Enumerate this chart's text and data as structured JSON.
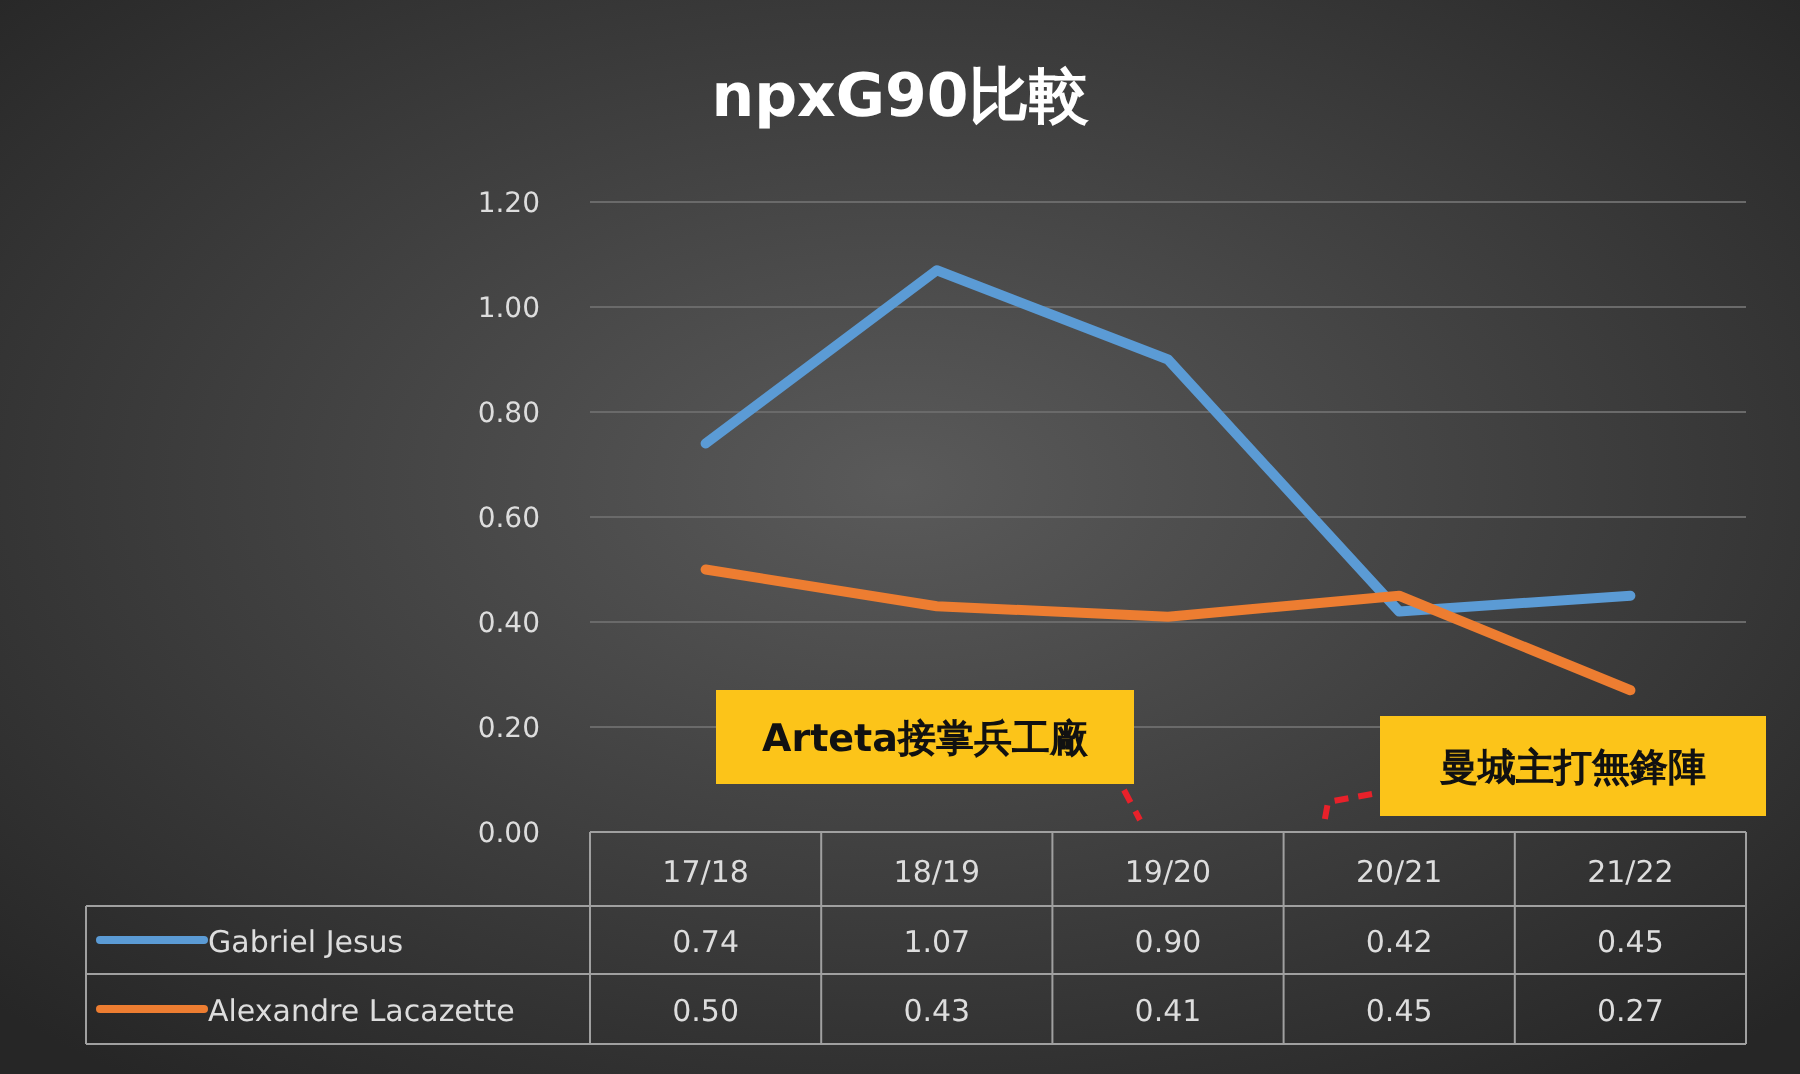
{
  "chart_data": {
    "type": "line",
    "title": "npxG90比較",
    "categories": [
      "17/18",
      "18/19",
      "19/20",
      "20/21",
      "21/22"
    ],
    "series": [
      {
        "name": "Gabriel Jesus",
        "color": "#5b9bd5",
        "values": [
          0.74,
          1.07,
          0.9,
          0.42,
          0.45
        ],
        "value_labels": [
          "0.74",
          "1.07",
          "0.90",
          "0.42",
          "0.45"
        ]
      },
      {
        "name": "Alexandre Lacazette",
        "color": "#ed7d31",
        "values": [
          0.5,
          0.43,
          0.41,
          0.45,
          0.27
        ],
        "value_labels": [
          "0.50",
          "0.43",
          "0.41",
          "0.45",
          "0.27"
        ]
      }
    ],
    "ylim": [
      0,
      1.2
    ],
    "yticks": [
      {
        "value": 0,
        "label": "0.00"
      },
      {
        "value": 0.2,
        "label": "0.20"
      },
      {
        "value": 0.4,
        "label": "0.40"
      },
      {
        "value": 0.6,
        "label": "0.60"
      },
      {
        "value": 0.8,
        "label": "0.80"
      },
      {
        "value": 1.0,
        "label": "1.00"
      },
      {
        "value": 1.2,
        "label": "1.20"
      }
    ],
    "grid": "y",
    "legend": "bottom",
    "marker": "none",
    "line_style": "solid",
    "annotations": [
      "Arteta接掌兵工廠",
      "曼城主打無鋒陣"
    ]
  }
}
